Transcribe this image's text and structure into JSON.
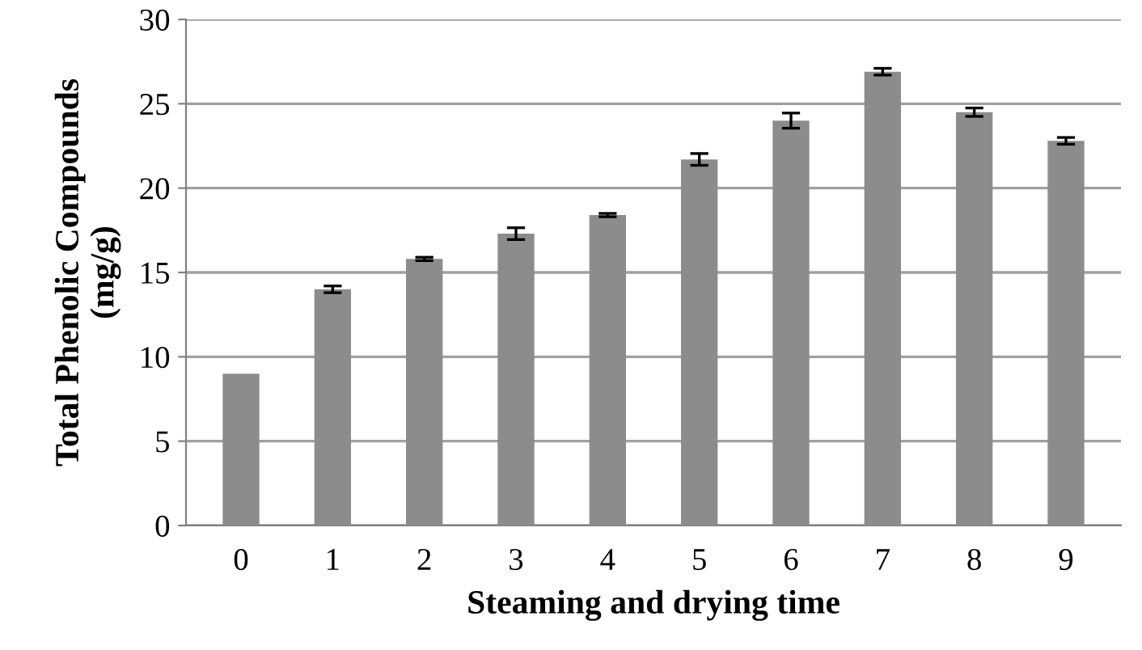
{
  "chart_data": {
    "type": "bar",
    "xlabel": "Steaming and drying time",
    "ylabel": "Total Phenolic Compounds\n(mg/g)",
    "categories": [
      "0",
      "1",
      "2",
      "3",
      "4",
      "5",
      "6",
      "7",
      "8",
      "9"
    ],
    "values": [
      9.0,
      14.0,
      15.8,
      17.3,
      18.4,
      21.7,
      24.0,
      26.9,
      24.5,
      22.8
    ],
    "errors": [
      null,
      0.2,
      0.1,
      0.35,
      0.1,
      0.35,
      0.45,
      0.2,
      0.25,
      0.2
    ],
    "color": "#8c8c8c",
    "ylim": [
      0,
      30
    ],
    "yticks": [
      0,
      5,
      10,
      15,
      20,
      25,
      30
    ],
    "grid": "y"
  }
}
